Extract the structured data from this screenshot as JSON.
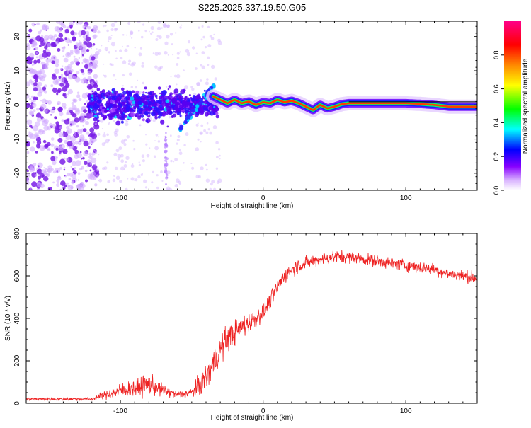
{
  "page": {
    "title": "S225.2025.337.19.50.G05"
  },
  "chart_data": [
    {
      "type": "heatmap",
      "title": "S225.2025.337.19.50.G05",
      "xlabel": "Height of straight line (km)",
      "ylabel": "Frequency (Hz)",
      "xlim": [
        -166,
        150
      ],
      "ylim": [
        -25,
        24.5
      ],
      "xticks": [
        -100,
        0,
        100
      ],
      "xtick_labels": [
        "-100",
        "0",
        "100"
      ],
      "yticks": [
        -20,
        -10,
        0,
        10,
        20
      ],
      "ytick_labels": [
        "-20",
        "-10",
        "0",
        "10",
        "20"
      ],
      "colorbar": {
        "label": "Normalized spectral amplitude",
        "range": [
          0,
          1
        ],
        "ticks": [
          0.0,
          0.2,
          0.4,
          0.6,
          0.8
        ],
        "tick_labels": [
          "0.0",
          "0.2",
          "0.4",
          "0.6",
          "0.8"
        ],
        "colors": [
          "#ffffff",
          "#8800ff",
          "#0000ff",
          "#00ffff",
          "#00ff00",
          "#ffff00",
          "#ff8800",
          "#ff0000",
          "#ff0088"
        ]
      },
      "ridge": {
        "x": [
          -35,
          -30,
          -25,
          -20,
          -15,
          -10,
          -5,
          0,
          5,
          10,
          15,
          20,
          25,
          30,
          35,
          40,
          45,
          50,
          55,
          60,
          70,
          80,
          90,
          100,
          110,
          120,
          130,
          140,
          150
        ],
        "y": [
          2.5,
          1.5,
          0.5,
          1.5,
          0.5,
          1.0,
          0.0,
          0.8,
          0.5,
          1.5,
          0.8,
          1.2,
          0.5,
          -0.5,
          -1.5,
          0.0,
          -1.0,
          -0.5,
          0.2,
          0.5,
          0.5,
          0.5,
          0.5,
          0.5,
          0.3,
          0.0,
          -0.5,
          -0.5,
          -0.5
        ]
      }
    },
    {
      "type": "line",
      "xlabel": "Height of straight line (km)",
      "ylabel": "SNR (10 * v/v)",
      "xlim": [
        -166,
        150
      ],
      "ylim": [
        0,
        800
      ],
      "xticks": [
        -100,
        0,
        100
      ],
      "xtick_labels": [
        "-100",
        "0",
        "100"
      ],
      "yticks": [
        0,
        200,
        400,
        600,
        800
      ],
      "ytick_labels": [
        "0",
        "200",
        "400",
        "600",
        "800"
      ],
      "color": "#ee2222",
      "envelope": {
        "x": [
          -166,
          -120,
          -110,
          -100,
          -90,
          -80,
          -70,
          -60,
          -50,
          -45,
          -40,
          -35,
          -30,
          -25,
          -20,
          -15,
          -10,
          -5,
          0,
          5,
          10,
          15,
          20,
          25,
          30,
          40,
          50,
          60,
          70,
          80,
          90,
          100,
          110,
          120,
          130,
          140,
          150
        ],
        "mean": [
          20,
          20,
          40,
          60,
          70,
          90,
          60,
          40,
          50,
          80,
          120,
          190,
          250,
          310,
          330,
          360,
          380,
          400,
          430,
          480,
          550,
          600,
          630,
          650,
          660,
          680,
          690,
          690,
          680,
          670,
          660,
          650,
          640,
          630,
          610,
          600,
          590
        ],
        "spread": [
          10,
          10,
          30,
          50,
          60,
          70,
          40,
          25,
          40,
          70,
          90,
          100,
          100,
          90,
          80,
          80,
          70,
          60,
          60,
          60,
          50,
          50,
          50,
          50,
          45,
          45,
          45,
          40,
          40,
          40,
          40,
          40,
          40,
          40,
          40,
          40,
          40
        ]
      }
    }
  ]
}
